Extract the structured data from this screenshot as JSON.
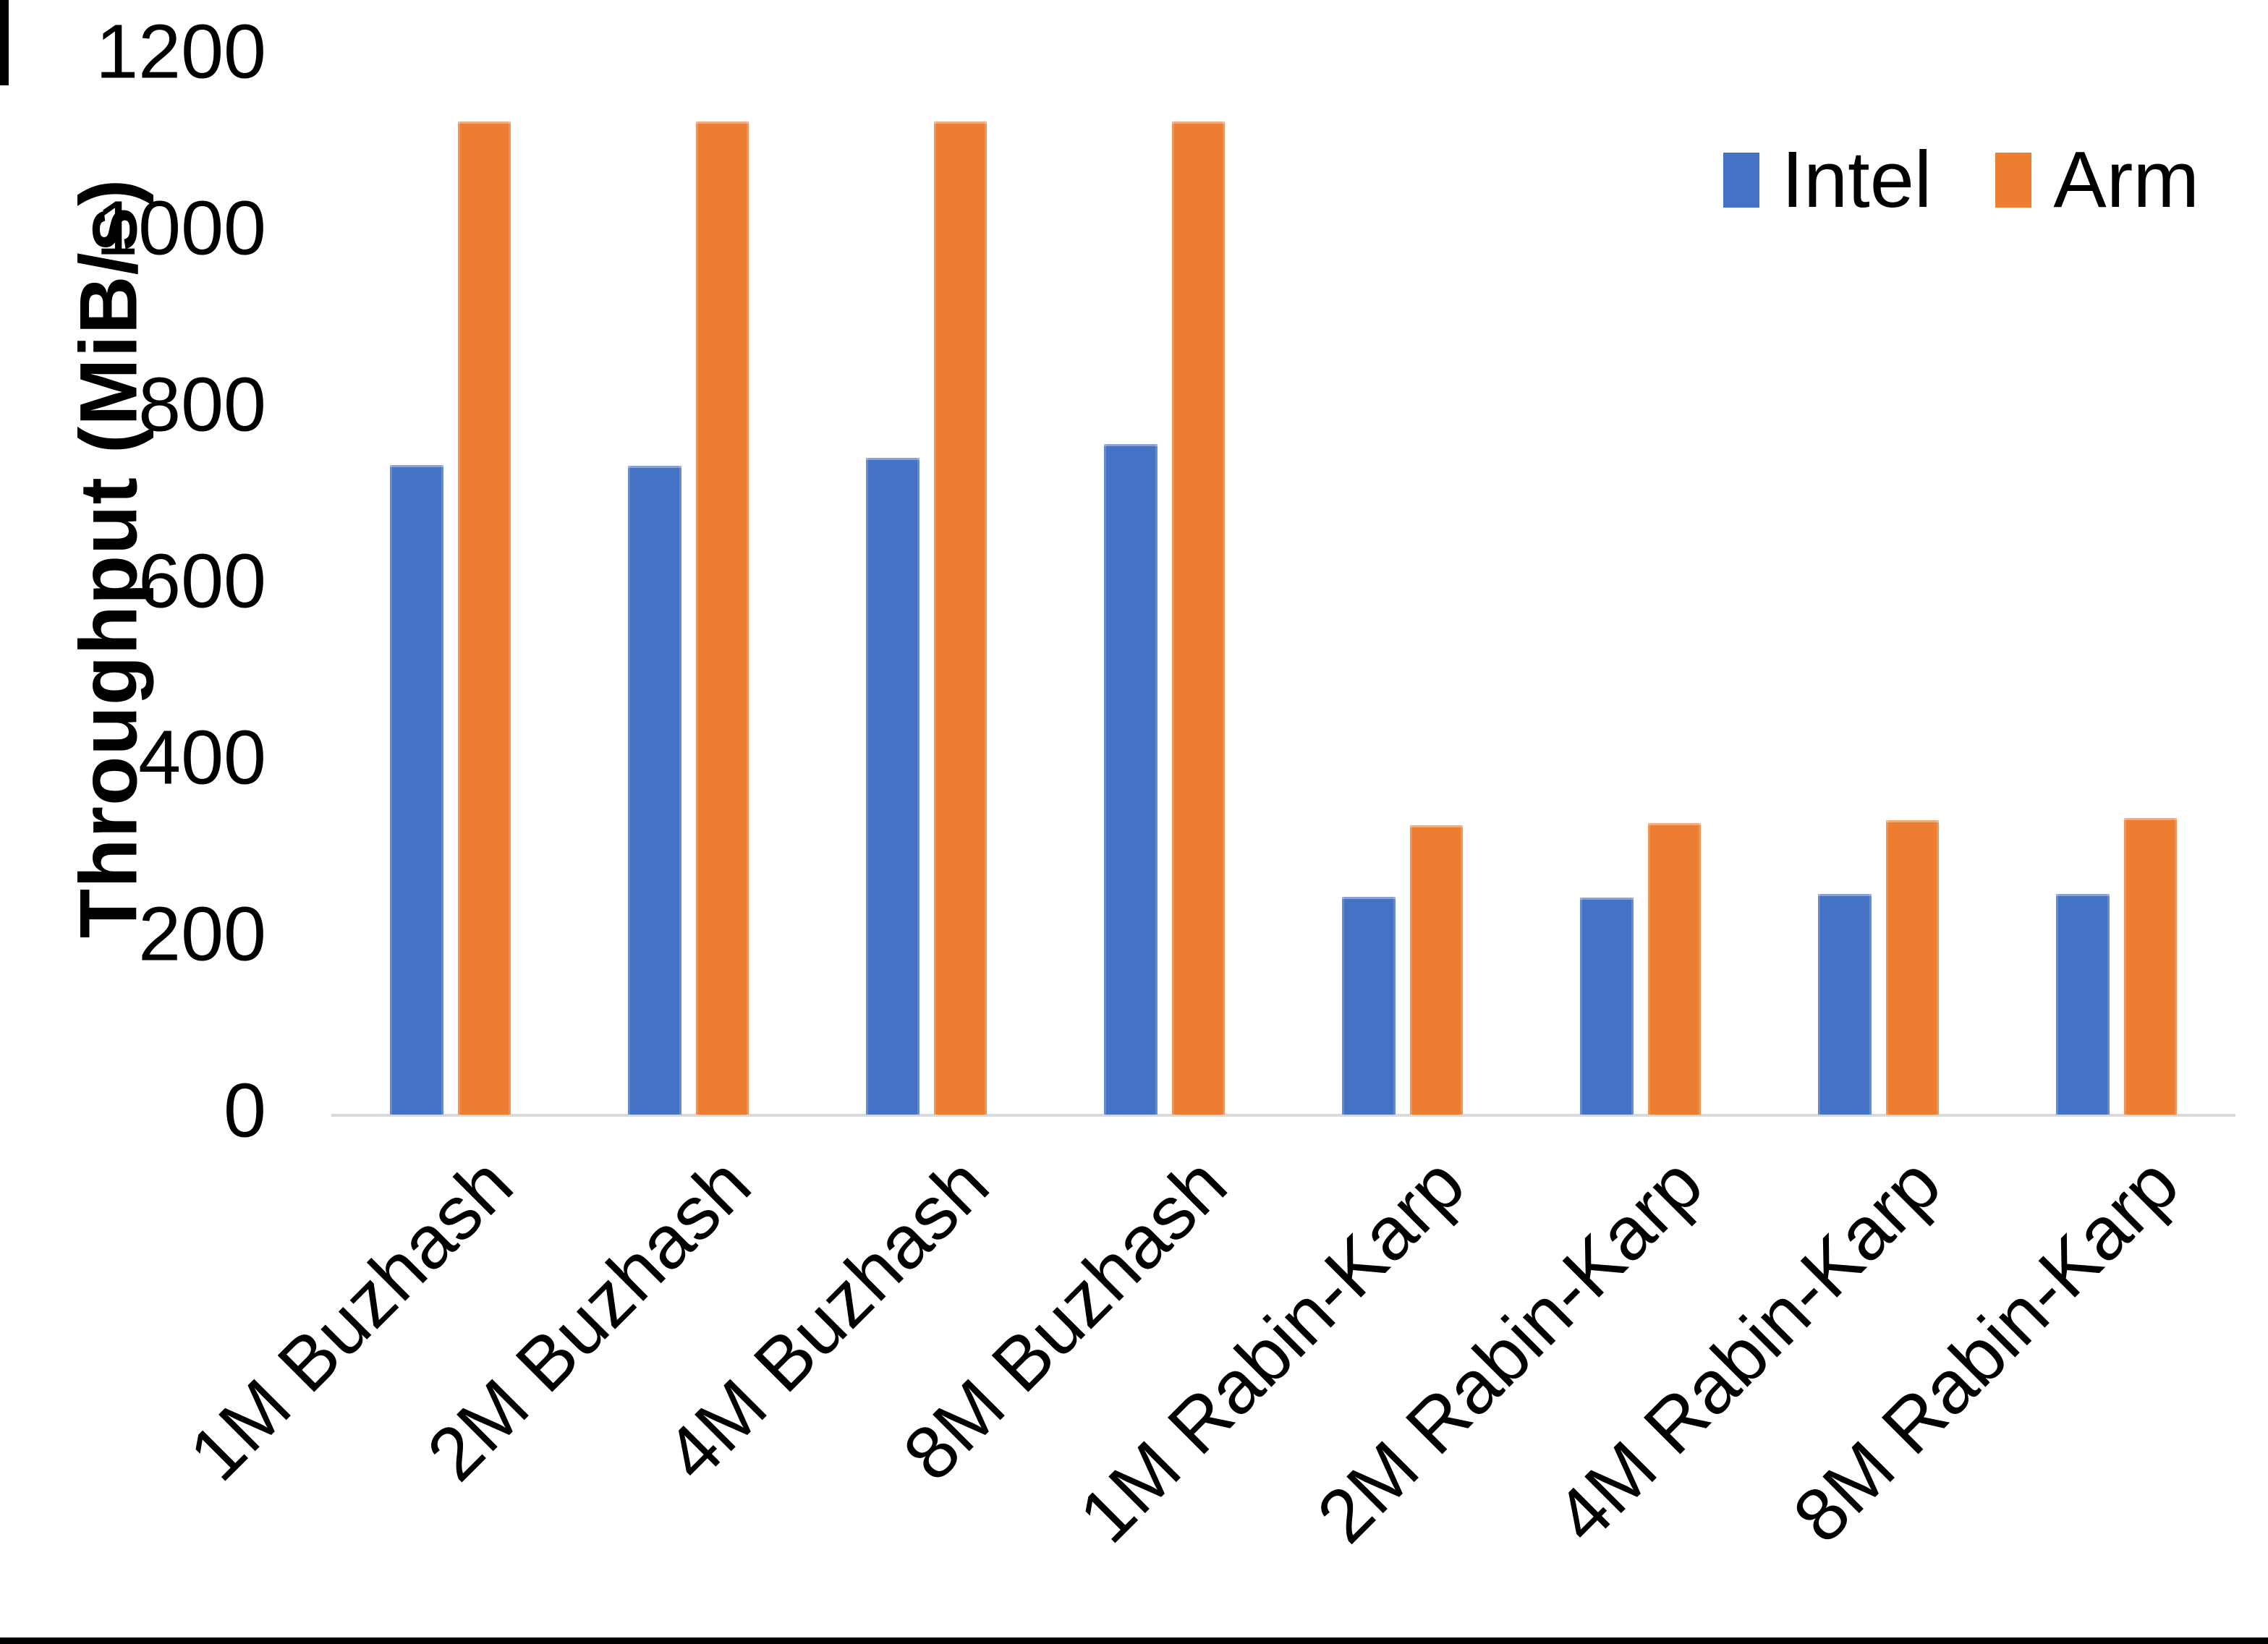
{
  "chart_data": {
    "type": "bar",
    "title": "",
    "categories": [
      "1M Buzhash",
      "2M Buzhash",
      "4M Buzhash",
      "8M Buzhash",
      "1M Rabin-Karp",
      "2M Rabin-Karp",
      "4M Rabin-Karp",
      "8M Rabin-Karp"
    ],
    "series": [
      {
        "name": "Intel",
        "color": "#4472C4",
        "values": [
          736,
          735,
          744,
          760,
          247,
          246,
          250,
          250
        ]
      },
      {
        "name": "Arm",
        "color": "#ED7D31",
        "values": [
          1125,
          1125,
          1125,
          1125,
          328,
          330,
          334,
          336
        ]
      }
    ],
    "xlabel": "",
    "ylabel": "Throughput (MiB/s)",
    "ylim": [
      0,
      1200
    ],
    "yticks": [
      0,
      200,
      400,
      600,
      800,
      1000,
      1200
    ],
    "grid": false,
    "legend_position": "top-right",
    "axis_line_color": "#D9D9D9",
    "background_color": "#FFFFFF",
    "text_color": "#000000"
  },
  "legend": {
    "items": [
      {
        "label": "Intel",
        "color": "#4472C4"
      },
      {
        "label": "Arm",
        "color": "#ED7D31"
      }
    ]
  },
  "decorations": {
    "bottom_bar_color": "#000000",
    "corner_sliver_color": "#000000"
  }
}
